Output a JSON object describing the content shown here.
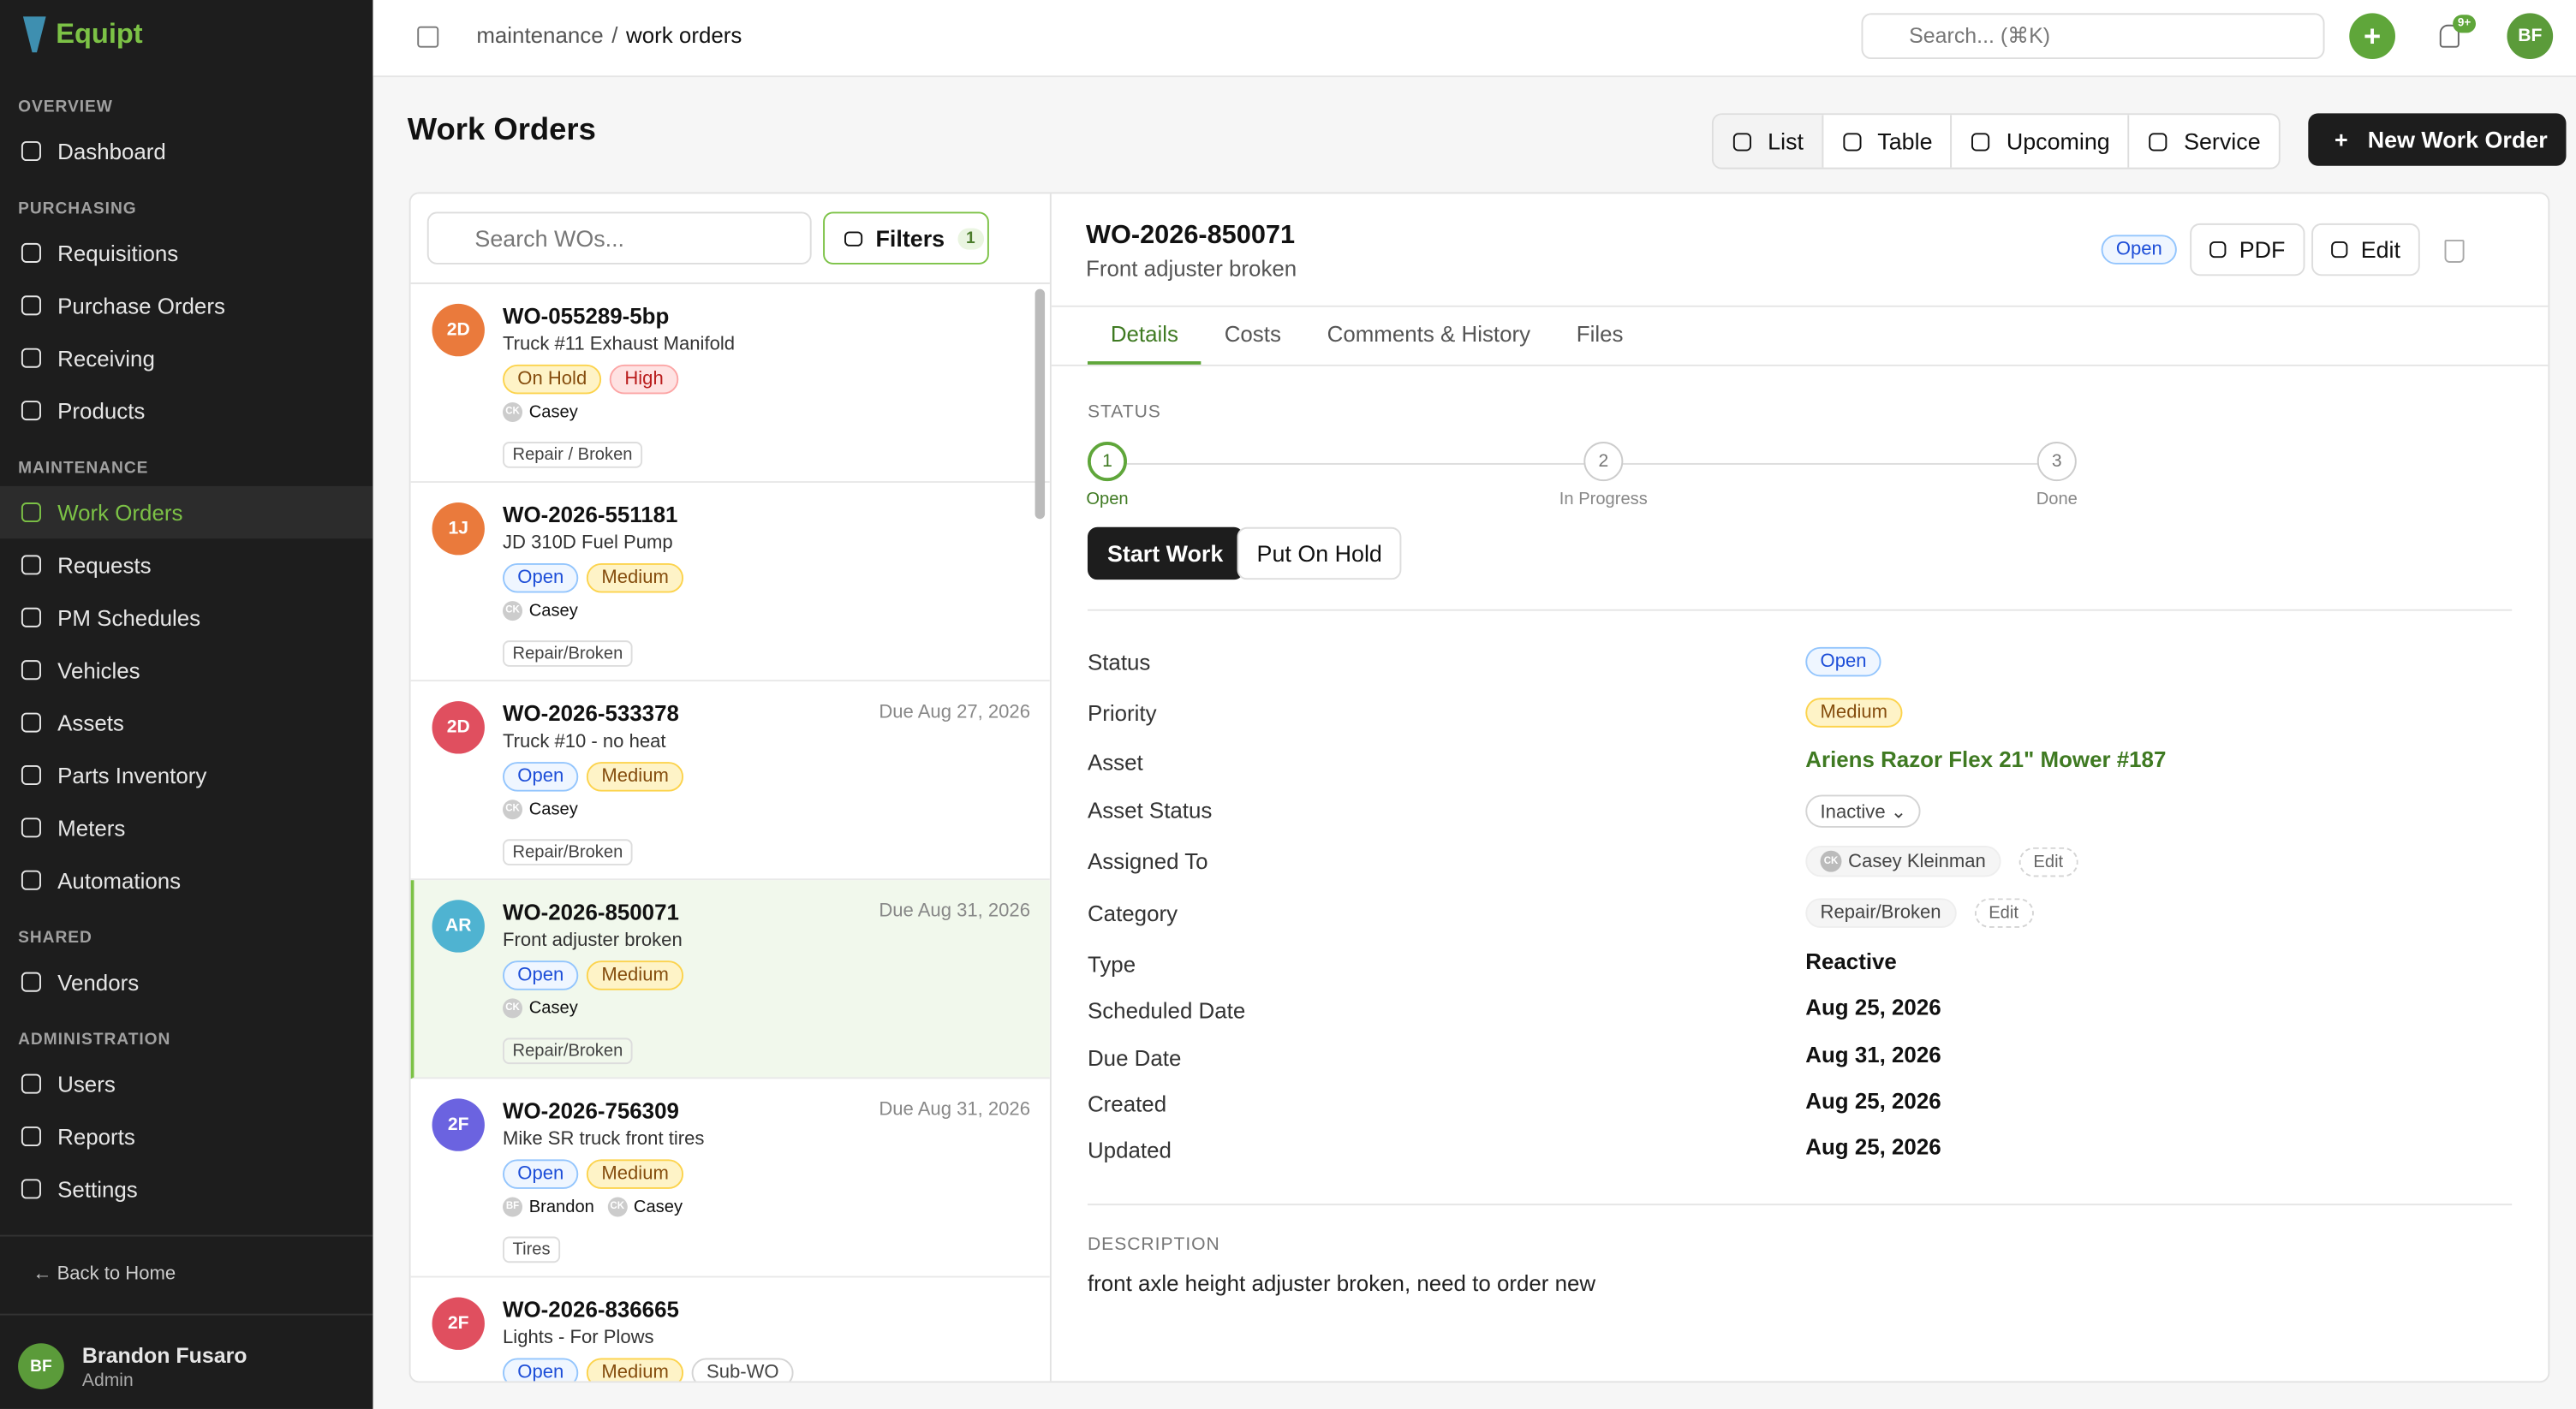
{
  "sidebar": {
    "brand": "Equipt",
    "sections": [
      {
        "title": "OVERVIEW",
        "items": [
          {
            "label": "Dashboard"
          }
        ]
      },
      {
        "title": "PURCHASING",
        "items": [
          {
            "label": "Requisitions"
          },
          {
            "label": "Purchase Orders"
          },
          {
            "label": "Receiving"
          },
          {
            "label": "Products"
          }
        ]
      },
      {
        "title": "MAINTENANCE",
        "items": [
          {
            "label": "Work Orders",
            "active": true
          },
          {
            "label": "Requests"
          },
          {
            "label": "PM Schedules"
          },
          {
            "label": "Vehicles"
          },
          {
            "label": "Assets"
          },
          {
            "label": "Parts Inventory"
          },
          {
            "label": "Meters"
          },
          {
            "label": "Automations"
          }
        ]
      },
      {
        "title": "SHARED",
        "items": [
          {
            "label": "Vendors"
          }
        ]
      },
      {
        "title": "ADMINISTRATION",
        "items": [
          {
            "label": "Users"
          },
          {
            "label": "Reports"
          },
          {
            "label": "Settings"
          }
        ]
      }
    ],
    "back": "Back to Home",
    "user": {
      "initials": "BF",
      "name": "Brandon Fusaro",
      "role": "Admin"
    }
  },
  "topbar": {
    "breadcrumb": [
      "maintenance",
      "work orders"
    ],
    "separator": "/",
    "search": "Search... (⌘K)",
    "notifications": "9+",
    "avatar": "BF"
  },
  "page": {
    "title": "Work Orders",
    "views": [
      {
        "label": "List",
        "active": true
      },
      {
        "label": "Table"
      },
      {
        "label": "Upcoming"
      },
      {
        "label": "Service"
      }
    ],
    "new_button": "New Work Order"
  },
  "list": {
    "search": "Search WOs...",
    "filters": "Filters",
    "filter_count": "1",
    "items": [
      {
        "initials": "2D",
        "color": "#ea7a3c",
        "id": "WO-055289-5bp",
        "title": "Truck #11 Exhaust Manifold",
        "badges": [
          {
            "label": "On Hold",
            "tone": "yellow"
          },
          {
            "label": "High",
            "tone": "red"
          }
        ],
        "assignees": [
          {
            "initials": "CK",
            "name": "Casey"
          }
        ],
        "tags": [
          "Repair / Broken"
        ]
      },
      {
        "initials": "1J",
        "color": "#ea7a3c",
        "id": "WO-2026-551181",
        "title": "JD 310D Fuel Pump",
        "badges": [
          {
            "label": "Open",
            "tone": "blue"
          },
          {
            "label": "Medium",
            "tone": "yellow"
          }
        ],
        "assignees": [
          {
            "initials": "CK",
            "name": "Casey"
          }
        ],
        "tags": [
          "Repair/Broken"
        ]
      },
      {
        "initials": "2D",
        "color": "#e04f5f",
        "id": "WO-2026-533378",
        "title": "Truck #10 - no heat",
        "due": "Due Aug 27, 2026",
        "badges": [
          {
            "label": "Open",
            "tone": "blue"
          },
          {
            "label": "Medium",
            "tone": "yellow"
          }
        ],
        "assignees": [
          {
            "initials": "CK",
            "name": "Casey"
          }
        ],
        "tags": [
          "Repair/Broken"
        ]
      },
      {
        "initials": "AR",
        "color": "#4fb3d1",
        "id": "WO-2026-850071",
        "title": "Front adjuster broken",
        "due": "Due Aug 31, 2026",
        "selected": true,
        "badges": [
          {
            "label": "Open",
            "tone": "blue"
          },
          {
            "label": "Medium",
            "tone": "yellow"
          }
        ],
        "assignees": [
          {
            "initials": "CK",
            "name": "Casey"
          }
        ],
        "tags": [
          "Repair/Broken"
        ]
      },
      {
        "initials": "2F",
        "color": "#6b63e0",
        "id": "WO-2026-756309",
        "title": "Mike SR truck front tires",
        "due": "Due Aug 31, 2026",
        "badges": [
          {
            "label": "Open",
            "tone": "blue"
          },
          {
            "label": "Medium",
            "tone": "yellow"
          }
        ],
        "assignees": [
          {
            "initials": "BF",
            "name": "Brandon"
          },
          {
            "initials": "CK",
            "name": "Casey"
          }
        ],
        "tags": [
          "Tires"
        ]
      },
      {
        "initials": "2F",
        "color": "#e04f5f",
        "id": "WO-2026-836665",
        "title": "Lights - For Plows",
        "badges": [
          {
            "label": "Open",
            "tone": "blue"
          },
          {
            "label": "Medium",
            "tone": "yellow"
          },
          {
            "label": "Sub-WO",
            "tone": "gray"
          }
        ],
        "assignees": [],
        "tags": []
      }
    ]
  },
  "detail": {
    "id": "WO-2026-850071",
    "subtitle": "Front adjuster broken",
    "status": "Open",
    "pdf": "PDF",
    "edit": "Edit",
    "tabs": [
      {
        "label": "Details",
        "active": true
      },
      {
        "label": "Costs"
      },
      {
        "label": "Comments & History"
      },
      {
        "label": "Files"
      }
    ],
    "status_heading": "STATUS",
    "steps": [
      {
        "n": 1,
        "label": "Open",
        "done": true
      },
      {
        "n": 2,
        "label": "In Progress"
      },
      {
        "n": 3,
        "label": "Done"
      }
    ],
    "actions": [
      {
        "label": "Start Work",
        "primary": true
      },
      {
        "label": "Put On Hold"
      }
    ],
    "fields": [
      {
        "label": "Status",
        "value": "Open",
        "kind": "badge",
        "tone": "blue"
      },
      {
        "label": "Priority",
        "value": "Medium",
        "kind": "badge",
        "tone": "yellow"
      },
      {
        "label": "Asset",
        "value": "Ariens Razor Flex 21\" Mower #187",
        "kind": "link"
      },
      {
        "label": "Asset Status",
        "value": "Inactive",
        "kind": "select"
      },
      {
        "label": "Assigned To",
        "value": "Casey Kleinman",
        "avatar": "CK",
        "kind": "chip",
        "edit": "Edit"
      },
      {
        "label": "Category",
        "value": "Repair/Broken",
        "kind": "chip",
        "edit": "Edit"
      },
      {
        "label": "Type",
        "value": "Reactive",
        "kind": "text"
      },
      {
        "label": "Scheduled Date",
        "value": "Aug 25, 2026",
        "kind": "text"
      },
      {
        "label": "Due Date",
        "value": "Aug 31, 2026",
        "kind": "text"
      },
      {
        "label": "Created",
        "value": "Aug 25, 2026",
        "kind": "text"
      },
      {
        "label": "Updated",
        "value": "Aug 25, 2026",
        "kind": "text"
      }
    ],
    "description_heading": "DESCRIPTION",
    "description": "front axle height adjuster broken, need to order new"
  }
}
